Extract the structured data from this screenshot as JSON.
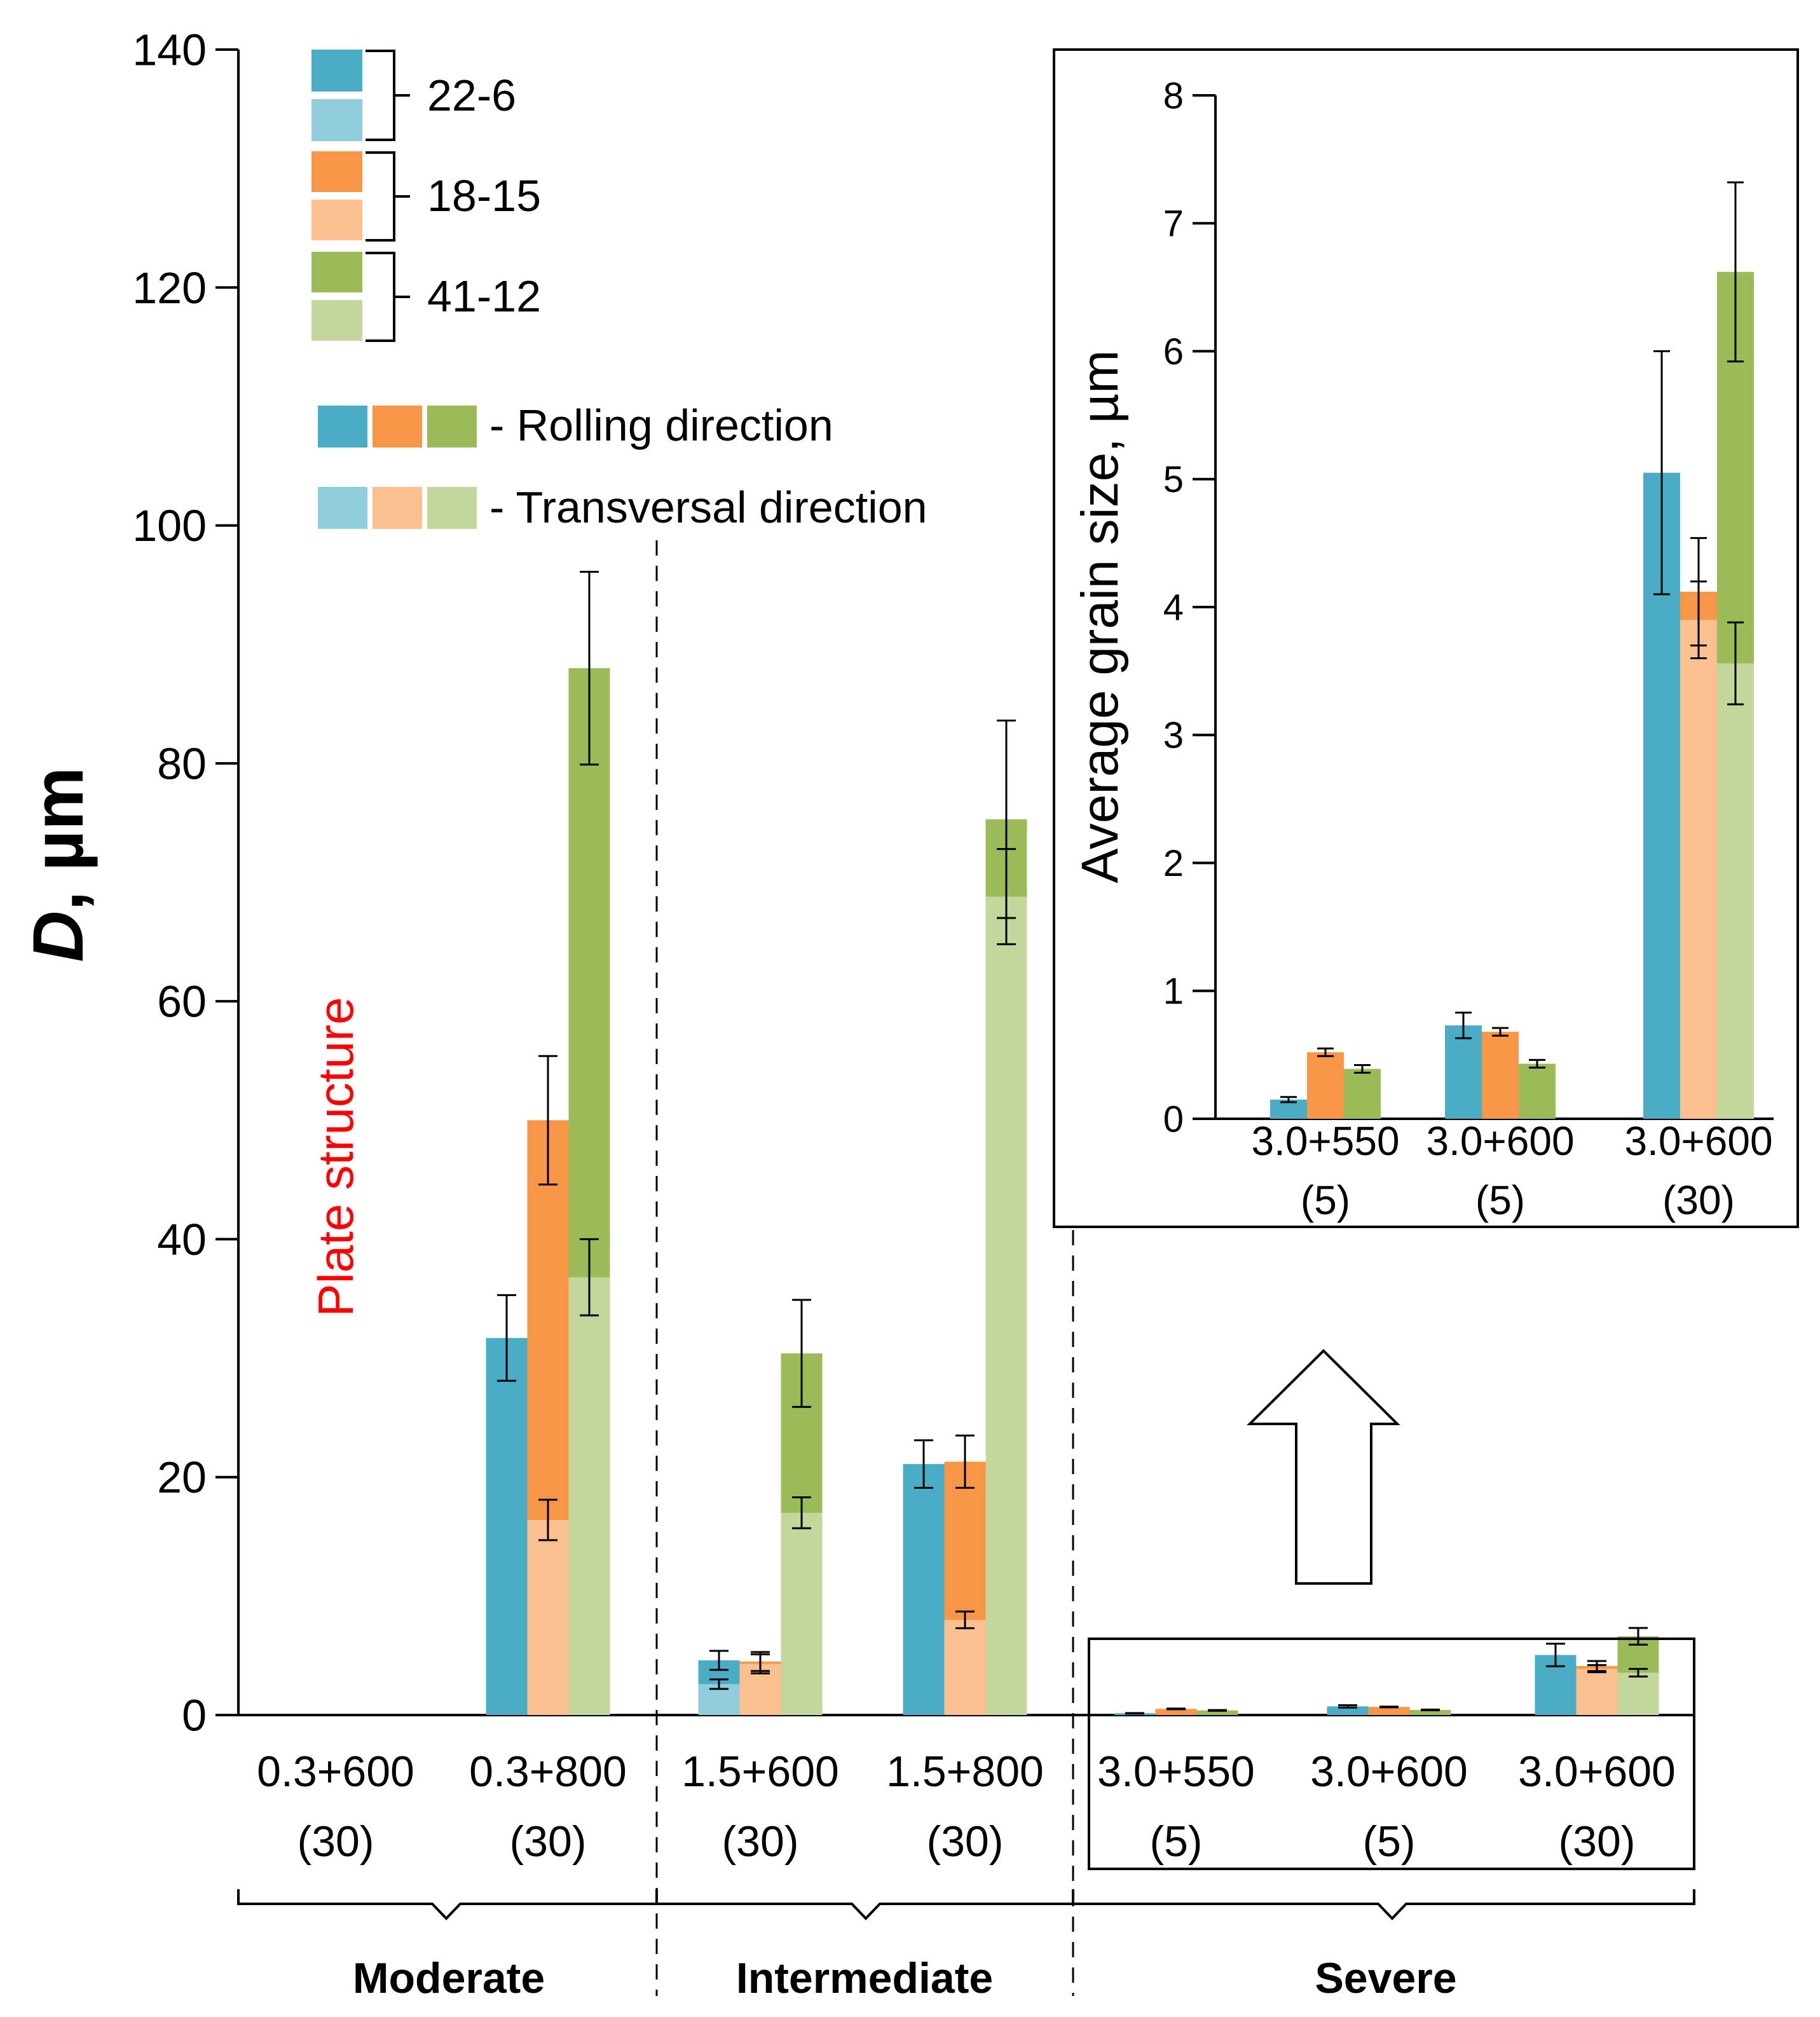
{
  "colors": {
    "teal_rolling": "#4bacc6",
    "teal_transversal": "#92cddc",
    "orange_rolling": "#f79646",
    "orange_transversal": "#fac090",
    "green_rolling": "#9bbb59",
    "green_transversal": "#c3d69b",
    "annotation": "#ff0000",
    "axis": "#000000"
  },
  "legend": {
    "groups": [
      {
        "label": "22-6",
        "rolling_color": "#4bacc6",
        "transversal_color": "#92cddc"
      },
      {
        "label": "18-15",
        "rolling_color": "#f79646",
        "transversal_color": "#fac090"
      },
      {
        "label": "41-12",
        "rolling_color": "#9bbb59",
        "transversal_color": "#c3d69b"
      }
    ],
    "rolling_label": "- Rolling direction",
    "transversal_label": "- Transversal direction"
  },
  "annotation": "Plate structure",
  "categories_labels": {
    "moderate": "Moderate",
    "intermediate": "Intermediate",
    "severe": "Severe"
  },
  "chart_data": [
    {
      "type": "bar",
      "title": "",
      "ylabel": "D, µm",
      "ylabel_italic_part": "D",
      "ylabel_rest": ", µm",
      "ylim": [
        0,
        140
      ],
      "yticks": [
        0,
        20,
        40,
        60,
        80,
        100,
        120,
        140
      ],
      "categories": [
        {
          "line1": "0.3+600",
          "line2": "(30)"
        },
        {
          "line1": "0.3+800",
          "line2": "(30)"
        },
        {
          "line1": "1.5+600",
          "line2": "(30)"
        },
        {
          "line1": "1.5+800",
          "line2": "(30)"
        },
        {
          "line1": "3.0+550",
          "line2": "(5)"
        },
        {
          "line1": "3.0+600",
          "line2": "(5)"
        },
        {
          "line1": "3.0+600",
          "line2": "(30)"
        }
      ],
      "series": [
        {
          "name": "22-6",
          "rolling": [
            null,
            31.7,
            4.6,
            21.1,
            0.15,
            0.73,
            5.05
          ],
          "rolling_err": [
            null,
            3.6,
            0.8,
            2.0,
            0.02,
            0.1,
            0.95
          ],
          "transversal": [
            null,
            null,
            2.6,
            null,
            null,
            null,
            null
          ],
          "transversal_err": [
            null,
            null,
            0.4,
            null,
            null,
            null,
            null
          ]
        },
        {
          "name": "18-15",
          "rolling": [
            null,
            50.0,
            4.5,
            21.3,
            0.52,
            0.68,
            4.12
          ],
          "rolling_err": [
            null,
            5.4,
            0.8,
            2.2,
            0.03,
            0.03,
            0.42
          ],
          "transversal": [
            null,
            16.4,
            4.3,
            8.0,
            null,
            null,
            3.9
          ],
          "transversal_err": [
            null,
            1.7,
            0.8,
            0.7,
            null,
            null,
            0.3
          ]
        },
        {
          "name": "41-12",
          "rolling": [
            null,
            88.0,
            30.4,
            75.3,
            0.39,
            0.43,
            6.62
          ],
          "rolling_err": [
            null,
            8.1,
            4.5,
            8.3,
            0.03,
            0.03,
            0.7
          ],
          "transversal": [
            null,
            36.8,
            17.0,
            68.8,
            null,
            null,
            3.56
          ],
          "transversal_err": [
            null,
            3.2,
            1.3,
            4.0,
            null,
            null,
            0.32
          ]
        }
      ],
      "groups": [
        {
          "label": "Moderate",
          "categories": [
            0,
            1
          ]
        },
        {
          "label": "Intermediate",
          "categories": [
            2,
            3
          ]
        },
        {
          "label": "Severe",
          "categories": [
            4,
            5,
            6
          ]
        }
      ]
    },
    {
      "type": "bar",
      "title": "",
      "ylabel": "Average grain size, µm",
      "ylim": [
        0,
        8
      ],
      "yticks": [
        0,
        1,
        2,
        3,
        4,
        5,
        6,
        7,
        8
      ],
      "categories": [
        {
          "line1": "3.0+550",
          "line2": "(5)"
        },
        {
          "line1": "3.0+600",
          "line2": "(5)"
        },
        {
          "line1": "3.0+600",
          "line2": "(30)"
        }
      ],
      "series": [
        {
          "name": "22-6",
          "rolling": [
            0.15,
            0.73,
            5.05
          ],
          "rolling_err": [
            0.02,
            0.1,
            0.95
          ],
          "transversal": [
            null,
            null,
            null
          ],
          "transversal_err": [
            null,
            null,
            null
          ]
        },
        {
          "name": "18-15",
          "rolling": [
            0.52,
            0.68,
            4.12
          ],
          "rolling_err": [
            0.03,
            0.03,
            0.42
          ],
          "transversal": [
            null,
            null,
            3.9
          ],
          "transversal_err": [
            null,
            null,
            0.3
          ]
        },
        {
          "name": "41-12",
          "rolling": [
            0.39,
            0.43,
            6.62
          ],
          "rolling_err": [
            0.03,
            0.03,
            0.7
          ],
          "transversal": [
            null,
            null,
            3.56
          ],
          "transversal_err": [
            null,
            null,
            0.32
          ]
        }
      ]
    }
  ]
}
